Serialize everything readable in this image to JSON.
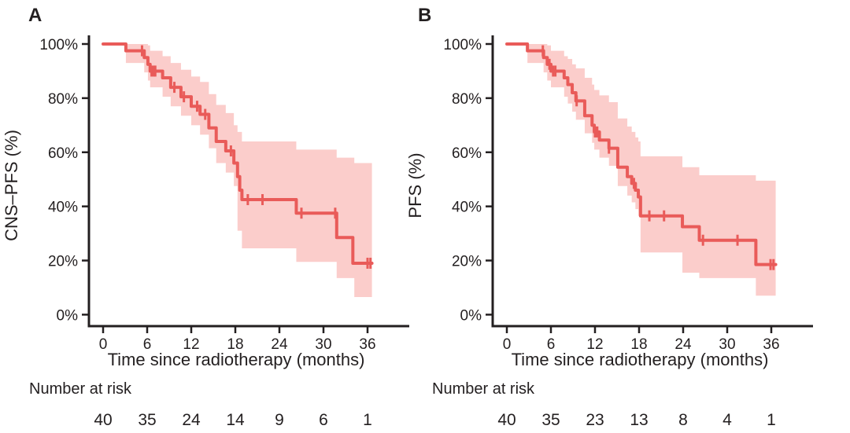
{
  "figure": {
    "background": "#ffffff",
    "text_color": "#231f20"
  },
  "chart_data": [
    {
      "type": "line",
      "subtype": "kaplan-meier-step-with-ci-band",
      "panel_label": "A",
      "title": "",
      "xlabel": "Time since radiotherapy (months)",
      "ylabel": "CNS–PFS (%)",
      "xlim": [
        0,
        38
      ],
      "ylim": [
        0,
        100
      ],
      "x_ticks": [
        0,
        6,
        12,
        18,
        24,
        30,
        36
      ],
      "y_ticks": [
        0,
        20,
        40,
        60,
        80,
        100
      ],
      "y_tick_labels": [
        "0%",
        "20%",
        "40%",
        "60%",
        "80%",
        "100%"
      ],
      "grid": false,
      "legend": "none",
      "end_time": 36.6,
      "steps": [
        [
          0,
          100
        ],
        [
          3.1,
          97.5
        ],
        [
          5.6,
          95
        ],
        [
          6.1,
          92.5
        ],
        [
          6.4,
          90
        ],
        [
          8.1,
          87.5
        ],
        [
          9.2,
          84
        ],
        [
          10.6,
          80.5
        ],
        [
          12.0,
          77
        ],
        [
          13.2,
          74
        ],
        [
          14.4,
          69
        ],
        [
          15.4,
          64
        ],
        [
          16.7,
          60.5
        ],
        [
          17.8,
          56
        ],
        [
          18.3,
          51
        ],
        [
          18.6,
          46
        ],
        [
          18.9,
          42.5
        ],
        [
          26.3,
          37.5
        ],
        [
          31.8,
          28.5
        ],
        [
          34.0,
          19
        ]
      ],
      "censors": [
        [
          5.3,
          97.5
        ],
        [
          6.6,
          90
        ],
        [
          6.9,
          90
        ],
        [
          7.1,
          90
        ],
        [
          9.7,
          84
        ],
        [
          11.0,
          80.5
        ],
        [
          12.8,
          77
        ],
        [
          13.9,
          74
        ],
        [
          17.4,
          60.5
        ],
        [
          19.7,
          42.5
        ],
        [
          21.7,
          42.5
        ],
        [
          27.0,
          37.5
        ],
        [
          31.6,
          37.5
        ],
        [
          36.0,
          19
        ],
        [
          36.4,
          19
        ]
      ],
      "ci_band": [
        [
          3.1,
          100,
          93
        ],
        [
          5.6,
          100,
          89.5
        ],
        [
          6.1,
          99.5,
          86.5
        ],
        [
          6.4,
          97.5,
          84
        ],
        [
          8.1,
          95.5,
          80.5
        ],
        [
          9.2,
          93,
          77
        ],
        [
          10.6,
          90.5,
          73.5
        ],
        [
          12.0,
          88,
          70
        ],
        [
          13.2,
          86,
          66.5
        ],
        [
          14.4,
          81.5,
          61.5
        ],
        [
          15.4,
          77.5,
          56
        ],
        [
          16.7,
          74.5,
          52.5
        ],
        [
          17.8,
          70,
          47.5
        ],
        [
          18.3,
          67.5,
          31
        ],
        [
          18.9,
          64,
          24.5
        ],
        [
          26.3,
          61,
          19.5
        ],
        [
          31.8,
          58,
          13.5
        ],
        [
          34.2,
          56,
          6.5
        ]
      ],
      "risk_table": {
        "label": "Number at risk",
        "times": [
          0,
          6,
          12,
          18,
          24,
          30,
          36
        ],
        "counts": [
          40,
          35,
          24,
          14,
          9,
          6,
          1
        ]
      },
      "colors": {
        "line": "#e95b59",
        "band": "#fbcdcb",
        "axis": "#231f20"
      }
    },
    {
      "type": "line",
      "subtype": "kaplan-meier-step-with-ci-band",
      "panel_label": "B",
      "title": "",
      "xlabel": "Time since radiotherapy (months)",
      "ylabel": "PFS (%)",
      "xlim": [
        0,
        38
      ],
      "ylim": [
        0,
        100
      ],
      "x_ticks": [
        0,
        6,
        12,
        18,
        24,
        30,
        36
      ],
      "y_ticks": [
        0,
        20,
        40,
        60,
        80,
        100
      ],
      "y_tick_labels": [
        "0%",
        "20%",
        "40%",
        "60%",
        "80%",
        "100%"
      ],
      "grid": false,
      "legend": "none",
      "end_time": 36.6,
      "steps": [
        [
          0,
          100
        ],
        [
          2.8,
          97.5
        ],
        [
          5.0,
          95
        ],
        [
          5.5,
          92.5
        ],
        [
          6.0,
          90
        ],
        [
          7.8,
          87.5
        ],
        [
          8.3,
          85
        ],
        [
          8.9,
          82
        ],
        [
          9.4,
          79
        ],
        [
          10.6,
          73.5
        ],
        [
          11.6,
          70
        ],
        [
          11.9,
          67.5
        ],
        [
          12.6,
          64.5
        ],
        [
          13.9,
          61.5
        ],
        [
          15.1,
          54.5
        ],
        [
          16.4,
          51
        ],
        [
          17.0,
          48.5
        ],
        [
          17.5,
          46
        ],
        [
          17.9,
          43.5
        ],
        [
          18.2,
          36.5
        ],
        [
          23.9,
          32.5
        ],
        [
          26.2,
          27.5
        ],
        [
          33.9,
          18.5
        ]
      ],
      "censors": [
        [
          4.9,
          97.5
        ],
        [
          5.8,
          92.5
        ],
        [
          6.3,
          90
        ],
        [
          6.6,
          90
        ],
        [
          9.5,
          79
        ],
        [
          12.0,
          67.5
        ],
        [
          12.3,
          67.5
        ],
        [
          13.9,
          61.5
        ],
        [
          17.3,
          48.5
        ],
        [
          19.4,
          36.5
        ],
        [
          21.4,
          36.5
        ],
        [
          26.7,
          27.5
        ],
        [
          31.4,
          27.5
        ],
        [
          35.9,
          18.5
        ],
        [
          36.3,
          18.5
        ]
      ],
      "ci_band": [
        [
          2.8,
          100,
          93
        ],
        [
          5.0,
          100,
          89.5
        ],
        [
          5.5,
          99.5,
          86.5
        ],
        [
          6.0,
          97.5,
          84
        ],
        [
          7.8,
          95.5,
          80.5
        ],
        [
          8.3,
          94.5,
          78
        ],
        [
          8.9,
          92.5,
          75
        ],
        [
          9.4,
          91,
          72
        ],
        [
          10.6,
          87.5,
          67
        ],
        [
          11.6,
          85,
          63.5
        ],
        [
          11.9,
          83,
          61
        ],
        [
          12.6,
          81,
          58
        ],
        [
          13.9,
          78.5,
          55
        ],
        [
          15.1,
          72.5,
          47.5
        ],
        [
          16.4,
          69.5,
          44
        ],
        [
          17.0,
          67.5,
          41.5
        ],
        [
          17.5,
          65.5,
          39
        ],
        [
          17.9,
          64,
          36.5
        ],
        [
          18.2,
          58.5,
          23
        ],
        [
          23.9,
          54.5,
          15.5
        ],
        [
          26.2,
          51.5,
          13.5
        ],
        [
          33.9,
          49.5,
          7
        ]
      ],
      "risk_table": {
        "label": "Number at risk",
        "times": [
          0,
          6,
          12,
          18,
          24,
          30,
          36
        ],
        "counts": [
          40,
          35,
          23,
          13,
          8,
          4,
          1
        ]
      },
      "colors": {
        "line": "#e95b59",
        "band": "#fbcdcb",
        "axis": "#231f20"
      }
    }
  ]
}
